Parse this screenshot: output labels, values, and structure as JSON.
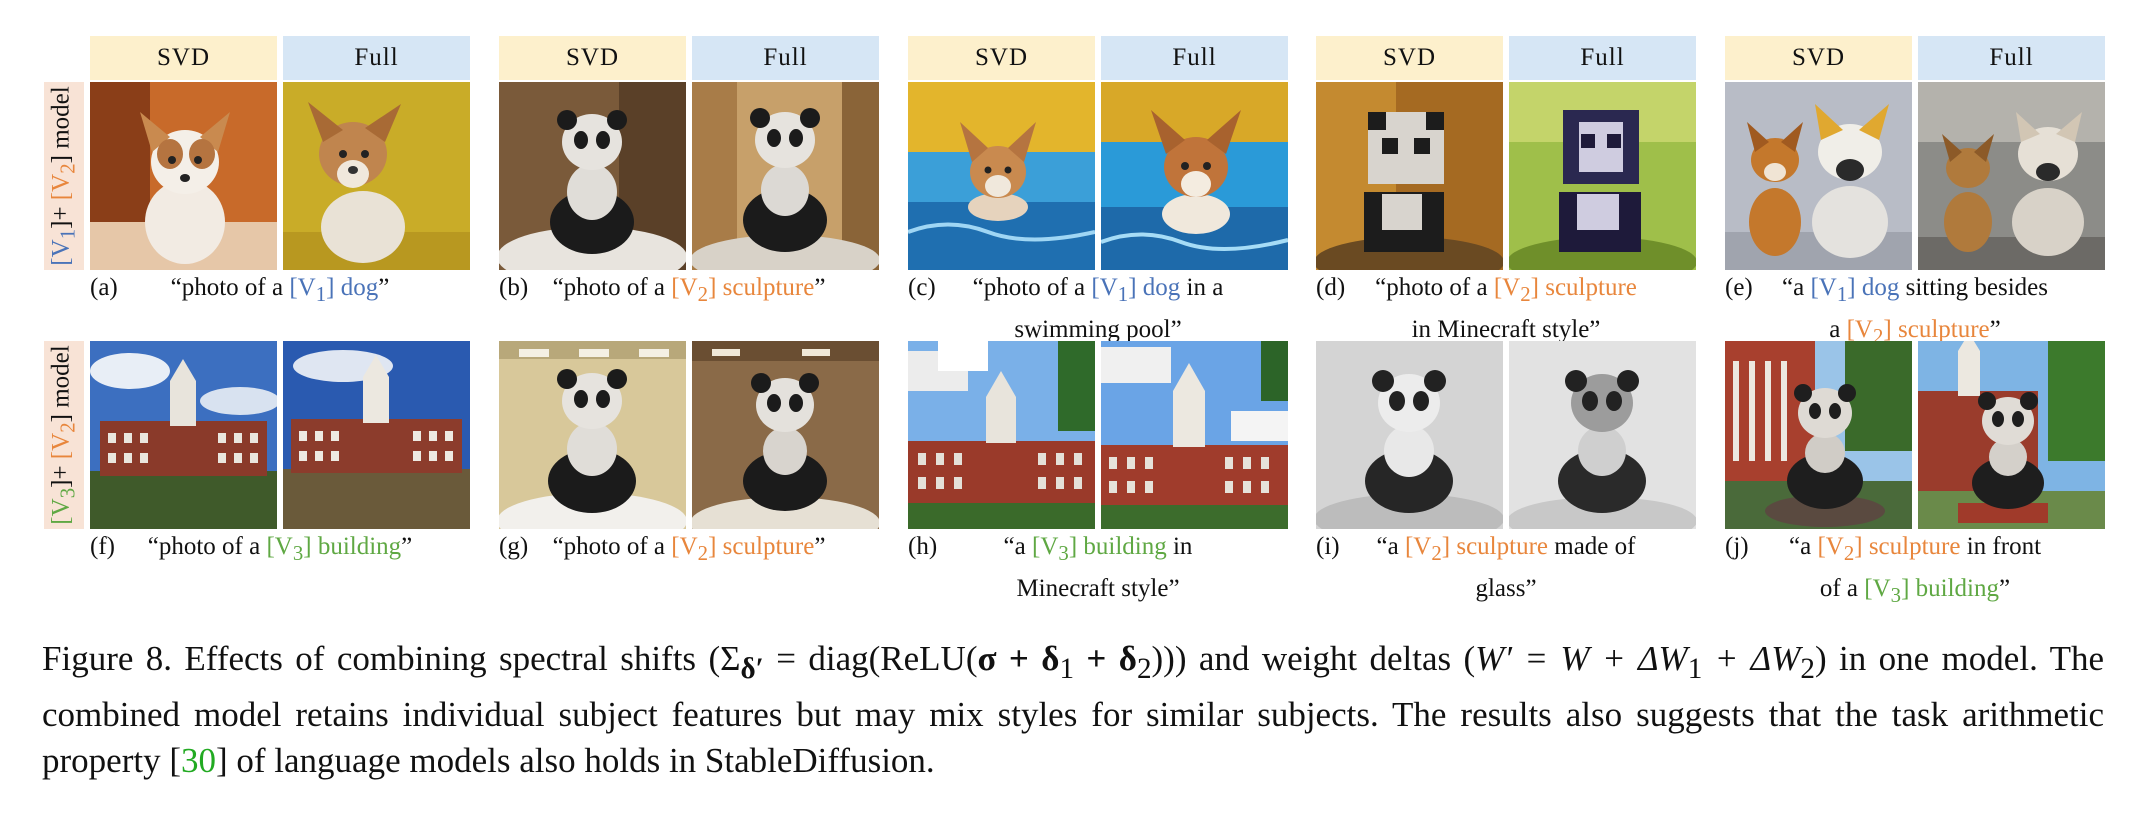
{
  "header": {
    "svd": "SVD",
    "full": "Full"
  },
  "row_labels": {
    "row1": {
      "a": "[V",
      "a_sub": "1",
      "mid": "]+ ",
      "b": "[V",
      "b_sub": "2",
      "end": "] model"
    },
    "row2": {
      "a": "[V",
      "a_sub": "3",
      "mid": "]+ ",
      "b": "[V",
      "b_sub": "2",
      "end": "] model"
    }
  },
  "captions": {
    "a": {
      "label": "(a)",
      "pre": "“photo of a ",
      "tok": "[V",
      "sub": "1",
      "tok_end": "] dog",
      "post": "”"
    },
    "b": {
      "label": "(b)",
      "pre": "“photo of a ",
      "tok": "[V",
      "sub": "2",
      "tok_end": "] sculpture",
      "post": "”"
    },
    "c": {
      "label": "(c)",
      "pre": "“photo of a ",
      "tok": "[V",
      "sub": "1",
      "tok_end": "] dog",
      "post": " in a",
      "line2": "swimming pool”"
    },
    "d": {
      "label": "(d)",
      "pre": "“photo of a ",
      "tok": "[V",
      "sub": "2",
      "tok_end": "] sculpture",
      "post": "",
      "line2": "in Minecraft style”"
    },
    "e": {
      "label": "(e)",
      "pre": "“a ",
      "tok": "[V",
      "sub": "1",
      "tok_end": "] dog",
      "post": " sitting besides",
      "line2_pre": "a ",
      "tok2": "[V",
      "sub2": "2",
      "tok2_end": "] sculpture",
      "line2_post": "”"
    },
    "f": {
      "label": "(f)",
      "pre": "“photo of a ",
      "tok": "[V",
      "sub": "3",
      "tok_end": "] building",
      "post": "”"
    },
    "g": {
      "label": "(g)",
      "pre": "“photo of a ",
      "tok": "[V",
      "sub": "2",
      "tok_end": "] sculpture",
      "post": "”"
    },
    "h": {
      "label": "(h)",
      "pre": "“a ",
      "tok": "[V",
      "sub": "3",
      "tok_end": "] building",
      "post": " in",
      "line2": "Minecraft style”"
    },
    "i": {
      "label": "(i)",
      "pre": "“a ",
      "tok": "[V",
      "sub": "2",
      "tok_end": "] sculpture",
      "post": " made of",
      "line2": "glass”"
    },
    "j": {
      "label": "(j)",
      "pre": "“a ",
      "tok": "[V",
      "sub": "2",
      "tok_end": "] sculpture",
      "post": " in front",
      "line2_pre": "of a ",
      "tok2": "[V",
      "sub2": "3",
      "tok2_end": "] building",
      "line2_post": "”"
    }
  },
  "figure_caption": {
    "p1": "Figure 8. Effects of combining spectral shifts (",
    "m1": "Σ",
    "m1_sub": "δ′",
    "m2": " = diag(ReLU(",
    "m3": "σ + δ",
    "m3_sub1": "1",
    "m4": " + δ",
    "m4_sub": "2",
    "m5": "))) and weight deltas (",
    "m6": "W′ = W + ΔW",
    "m6_sub1": "1",
    "m7": " + ΔW",
    "m7_sub": "2",
    "p2": ") in one model. The combined model retains individual subject features but may mix styles for similar subjects. The results also suggests that the task arithmetic property [",
    "cite": "30",
    "p3": "] of language models also holds in StableDiffusion."
  },
  "colors": {
    "v1": "#4a73b8",
    "v2": "#e8863c",
    "v3": "#5fa843",
    "svd_bg": "#fdf0cc",
    "full_bg": "#d6e6f5",
    "label_bg": "#f8e3d6",
    "cite": "#22aa22"
  }
}
